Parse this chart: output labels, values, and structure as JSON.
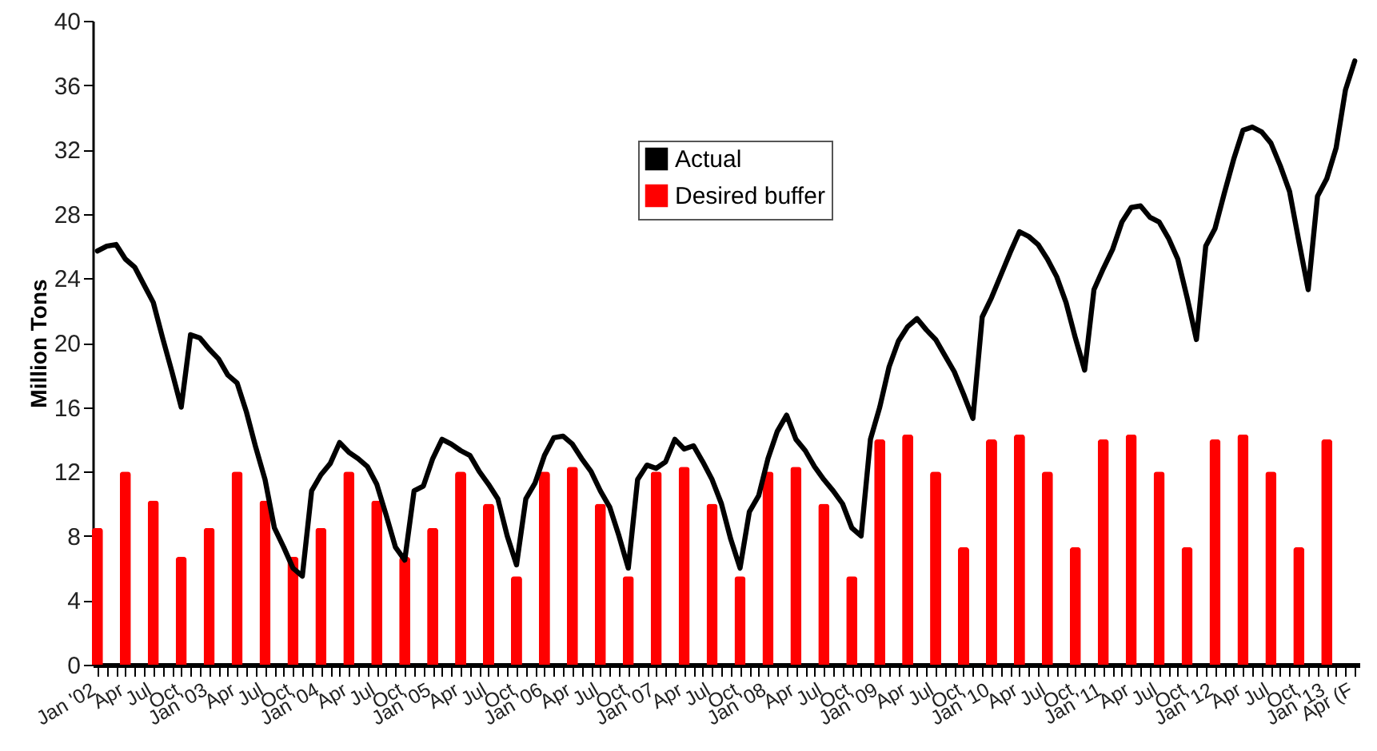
{
  "chart_data": {
    "type": "bar",
    "ylabel": "Million Tons",
    "categories": [
      "Jan '02",
      null,
      null,
      "Apr",
      null,
      null,
      "Jul",
      null,
      null,
      "Oct",
      null,
      null,
      "Jan '03",
      null,
      null,
      "Apr",
      null,
      null,
      "Jul",
      null,
      null,
      "Oct",
      null,
      null,
      "Jan '04",
      null,
      null,
      "Apr",
      null,
      null,
      "Jul",
      null,
      null,
      "Oct",
      null,
      null,
      "Jan '05",
      null,
      null,
      "Apr",
      null,
      null,
      "Jul",
      null,
      null,
      "Oct",
      null,
      null,
      "Jan '06",
      null,
      null,
      "Apr",
      null,
      null,
      "Jul",
      null,
      null,
      "Oct",
      null,
      null,
      "Jan '07",
      null,
      null,
      "Apr",
      null,
      null,
      "Jul",
      null,
      null,
      "Oct",
      null,
      null,
      "Jan '08",
      null,
      null,
      "Apr",
      null,
      null,
      "Jul",
      null,
      null,
      "Oct",
      null,
      null,
      "Jan '09",
      null,
      null,
      "Apr",
      null,
      null,
      "Jul",
      null,
      null,
      "Oct",
      null,
      null,
      "Jan '10",
      null,
      null,
      "Apr",
      null,
      null,
      "Jul",
      null,
      null,
      "Oct",
      null,
      null,
      "Jan '11",
      null,
      null,
      "Apr",
      null,
      null,
      "Jul",
      null,
      null,
      "Oct",
      null,
      null,
      "Jan '12",
      null,
      null,
      "Apr",
      null,
      null,
      "Jul",
      null,
      null,
      "Oct",
      null,
      null,
      "Jan '13",
      null,
      null,
      "Apr (F"
    ],
    "series": [
      {
        "name": "Actual",
        "type": "line",
        "color": "#000000",
        "values": [
          25.7,
          26,
          26.1,
          25.2,
          24.7,
          23.6,
          22.5,
          20.3,
          18.2,
          16,
          20.5,
          20.3,
          19.6,
          19,
          18,
          17.5,
          15.7,
          13.5,
          11.5,
          8.5,
          7.3,
          6,
          5.5,
          10.8,
          11.8,
          12.5,
          13.8,
          13.2,
          12.8,
          12.3,
          11.2,
          9.3,
          7.3,
          6.5,
          10.8,
          11.1,
          12.8,
          14,
          13.7,
          13.3,
          13,
          12,
          11.2,
          10.3,
          8,
          6.2,
          10.3,
          11.3,
          13,
          14.1,
          14.2,
          13.7,
          12.8,
          12,
          10.8,
          9.8,
          8,
          6,
          11.5,
          12.4,
          12.2,
          12.6,
          14,
          13.4,
          13.6,
          12.6,
          11.5,
          10,
          7.8,
          6,
          9.5,
          10.5,
          12.8,
          14.5,
          15.5,
          14,
          13.3,
          12.3,
          11.5,
          10.8,
          10,
          8.5,
          8,
          14,
          16,
          18.5,
          20.1,
          21,
          21.5,
          20.8,
          20.2,
          19.2,
          18.2,
          16.8,
          15.3,
          21.6,
          22.8,
          24.2,
          25.6,
          26.9,
          26.6,
          26.1,
          25.2,
          24.1,
          22.5,
          20.3,
          18.3,
          23.3,
          24.6,
          25.8,
          27.5,
          28.4,
          28.5,
          27.8,
          27.5,
          26.5,
          25.2,
          22.8,
          20.2,
          26,
          27.1,
          29.3,
          31.4,
          33.2,
          33.4,
          33.1,
          32.4,
          31,
          29.4,
          26.3,
          23.3,
          29.1,
          30.2,
          32.1,
          35.7,
          37.5
        ]
      },
      {
        "name": "Desired buffer",
        "color": "#ff0000",
        "values": [
          8.5,
          null,
          null,
          12,
          null,
          null,
          10.2,
          null,
          null,
          6.7,
          null,
          null,
          8.5,
          null,
          null,
          12,
          null,
          null,
          10.2,
          null,
          null,
          6.7,
          null,
          null,
          8.5,
          null,
          null,
          12,
          null,
          null,
          10.2,
          null,
          null,
          6.7,
          null,
          null,
          8.5,
          null,
          null,
          12,
          null,
          null,
          10,
          null,
          null,
          5.5,
          null,
          null,
          12,
          null,
          null,
          12.3,
          null,
          null,
          10,
          null,
          null,
          5.5,
          null,
          null,
          12,
          null,
          null,
          12.3,
          null,
          null,
          10,
          null,
          null,
          5.5,
          null,
          null,
          12,
          null,
          null,
          12.3,
          null,
          null,
          10,
          null,
          null,
          5.5,
          null,
          null,
          14,
          null,
          null,
          14.3,
          null,
          null,
          12,
          null,
          null,
          7.3,
          null,
          null,
          14,
          null,
          null,
          14.3,
          null,
          null,
          12,
          null,
          null,
          7.3,
          null,
          null,
          14,
          null,
          null,
          14.3,
          null,
          null,
          12,
          null,
          null,
          7.3,
          null,
          null,
          14,
          null,
          null,
          14.3,
          null,
          null,
          12,
          null,
          null,
          7.3,
          null,
          null,
          14,
          null,
          null,
          null
        ]
      }
    ],
    "ylim": [
      0,
      40
    ],
    "yticks": [
      0,
      4,
      8,
      12,
      16,
      20,
      24,
      28,
      32,
      36,
      40
    ],
    "legend": "top"
  }
}
